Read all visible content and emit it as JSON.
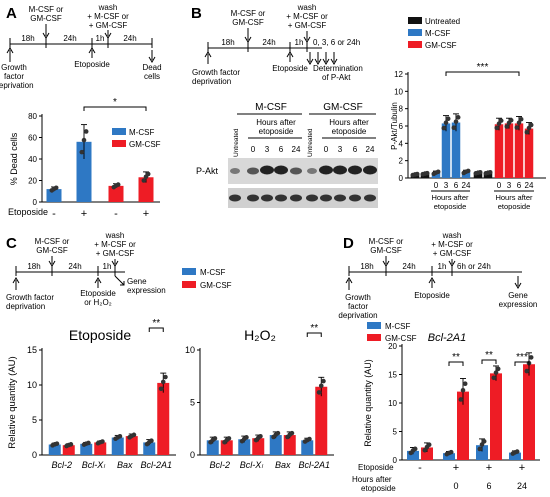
{
  "colors": {
    "mcsf": "#2e78c4",
    "gmcsf": "#ee1c25",
    "untreated": "#111111",
    "dot": "#333333",
    "ink": "#000000"
  },
  "panels": {
    "A": {
      "letter": "A",
      "timeline": {
        "top_label": [
          "M-CSF or",
          "GM-CSF"
        ],
        "wash_label": [
          "wash",
          "+ M-CSF or",
          "+ GM-CSF"
        ],
        "durations": [
          "18h",
          "24h",
          "1h",
          "24h"
        ],
        "start_label": [
          "Growth",
          "factor",
          "deprivation"
        ],
        "mid_label": "Etoposide",
        "end_label": [
          "Dead",
          "cells"
        ]
      },
      "legend": [
        "M-CSF",
        "GM-CSF"
      ],
      "row_label": "Etoposide",
      "signs": [
        "-",
        "+",
        "-",
        "+"
      ],
      "sig": "*"
    },
    "B": {
      "letter": "B",
      "timeline": {
        "top_label": [
          "M-CSF or",
          "GM-CSF"
        ],
        "wash_label": [
          "wash",
          "+ M-CSF or",
          "+ GM-CSF"
        ],
        "durations": [
          "18h",
          "24h",
          "1h"
        ],
        "times_label": "0, 3, 6 or 24h",
        "start_label": [
          "Growth factor",
          "deprivation"
        ],
        "mid_label": "Etoposide",
        "end_label": [
          "Determination",
          "of P-Akt"
        ]
      },
      "blot": {
        "groups": [
          "M-CSF",
          "GM-CSF"
        ],
        "untreated": "Untreated",
        "hours_label": [
          "Hours after",
          "etoposide"
        ],
        "times": [
          "0",
          "3",
          "6",
          "24"
        ],
        "band_label": "P-Akt"
      },
      "legend": [
        "Untreated",
        "M-CSF",
        "GM-CSF"
      ],
      "ticks": [
        "0",
        "3",
        "6",
        "24",
        "0",
        "3",
        "6",
        "24"
      ],
      "under_labels": [
        [
          "Hours after",
          "etoposide"
        ],
        [
          "Hours after",
          "etoposide"
        ]
      ],
      "sig": "***"
    },
    "C": {
      "letter": "C",
      "timeline": {
        "top_label": [
          "M-CSF or",
          "GM-CSF"
        ],
        "wash_label": [
          "wash",
          "+ M-CSF or",
          "+ GM-CSF"
        ],
        "durations": [
          "18h",
          "24h",
          "1h"
        ],
        "start_label": [
          "Growth factor",
          "deprivation"
        ],
        "mid_label": [
          "Etoposide",
          "or H₂O₂"
        ],
        "end_label": [
          "Gene",
          "expression"
        ]
      },
      "legend": [
        "M-CSF",
        "GM-CSF"
      ],
      "titles": [
        "Etoposide",
        "H₂O₂"
      ],
      "genes": [
        "Bcl-2",
        "Bcl-Xₗ",
        "Bax",
        "Bcl-2A1"
      ],
      "sigs": [
        "**",
        "**"
      ]
    },
    "D": {
      "letter": "D",
      "timeline": {
        "top_label": [
          "M-CSF or",
          "GM-CSF"
        ],
        "wash_label": [
          "wash",
          "+ M-CSF or",
          "+ GM-CSF"
        ],
        "durations": [
          "18h",
          "24h",
          "1h",
          "6h or 24h"
        ],
        "start_label": [
          "Growth",
          "factor",
          "deprivation"
        ],
        "mid_label": "Etoposide",
        "end_label": [
          "Gene",
          "expression"
        ]
      },
      "legend": [
        "M-CSF",
        "GM-CSF"
      ],
      "title": "Bcl-2A1",
      "row1_label": "Etoposide",
      "row2_label": [
        "Hours after",
        "etoposide"
      ],
      "signs": [
        "-",
        "+",
        "+",
        "+"
      ],
      "hours": [
        "0",
        "6",
        "24"
      ],
      "sigs": [
        "**",
        "**",
        "***"
      ]
    }
  },
  "chart_data": [
    {
      "panel": "A",
      "type": "bar",
      "categories": [
        "-",
        "+",
        "-",
        "+"
      ],
      "ylabel": "% Dead cells",
      "ylim": [
        0,
        80
      ],
      "yticks": [
        0,
        20,
        40,
        60,
        80
      ],
      "values": [
        12,
        56,
        15,
        23
      ],
      "errors": [
        2,
        16,
        2,
        5
      ],
      "series_index": [
        0,
        0,
        1,
        1
      ]
    },
    {
      "panel": "B",
      "type": "bar",
      "ylabel": "P-Akt/Tubulin",
      "ylim": [
        0,
        12
      ],
      "yticks": [
        0,
        2,
        4,
        6,
        8,
        10,
        12
      ],
      "categories": [
        "Untreated",
        "Untreated",
        "0",
        "3",
        "6",
        "24",
        "Untreated",
        "Untreated",
        "0",
        "3",
        "6",
        "24"
      ],
      "values": [
        0.4,
        0.5,
        0.6,
        6.3,
        6.4,
        0.7,
        0.6,
        0.6,
        6.2,
        6.3,
        6.3,
        5.7
      ],
      "errors": [
        0.1,
        0.1,
        0.2,
        0.9,
        1.0,
        0.2,
        0.1,
        0.1,
        0.7,
        0.6,
        0.8,
        0.7
      ],
      "series_index": [
        2,
        2,
        0,
        0,
        0,
        0,
        2,
        2,
        1,
        1,
        1,
        1
      ]
    },
    {
      "panel": "C",
      "type": "bar",
      "title": "Etoposide",
      "ylabel": "Relative quantity (AU)",
      "ylim": [
        0,
        15
      ],
      "yticks": [
        0,
        5,
        10,
        15
      ],
      "categories": [
        "Bcl-2",
        "Bcl-Xₗ",
        "Bax",
        "Bcl-2A1"
      ],
      "series": [
        {
          "name": "M-CSF",
          "values": [
            1.5,
            1.6,
            2.5,
            1.8
          ],
          "errors": [
            0.2,
            0.2,
            0.3,
            0.4
          ]
        },
        {
          "name": "GM-CSF",
          "values": [
            1.4,
            1.8,
            2.7,
            10.3
          ],
          "errors": [
            0.2,
            0.2,
            0.3,
            1.4
          ]
        }
      ]
    },
    {
      "panel": "C",
      "type": "bar",
      "title": "H₂O₂",
      "ylim": [
        0,
        10
      ],
      "yticks": [
        0,
        5,
        10
      ],
      "categories": [
        "Bcl-2",
        "Bcl-Xₗ",
        "Bax",
        "Bcl-2A1"
      ],
      "series": [
        {
          "name": "M-CSF",
          "values": [
            1.4,
            1.5,
            1.9,
            1.4
          ],
          "errors": [
            0.3,
            0.3,
            0.3,
            0.2
          ]
        },
        {
          "name": "GM-CSF",
          "values": [
            1.4,
            1.6,
            1.9,
            6.5
          ],
          "errors": [
            0.3,
            0.3,
            0.3,
            0.9
          ]
        }
      ]
    },
    {
      "panel": "D",
      "type": "bar",
      "title": "Bcl-2A1",
      "ylabel": "Relative quantity (AU)",
      "ylim": [
        0,
        20
      ],
      "yticks": [
        0,
        5,
        10,
        15,
        20
      ],
      "categories": [
        "- / -",
        "+ / 0",
        "+ / 6",
        "+ / 24"
      ],
      "series": [
        {
          "name": "M-CSF",
          "values": [
            1.6,
            1.2,
            2.6,
            1.3
          ],
          "errors": [
            0.6,
            0.3,
            1.1,
            0.3
          ]
        },
        {
          "name": "GM-CSF",
          "values": [
            2.2,
            12.0,
            15.2,
            16.8
          ],
          "errors": [
            0.8,
            2.3,
            1.3,
            2.0
          ]
        }
      ]
    }
  ]
}
